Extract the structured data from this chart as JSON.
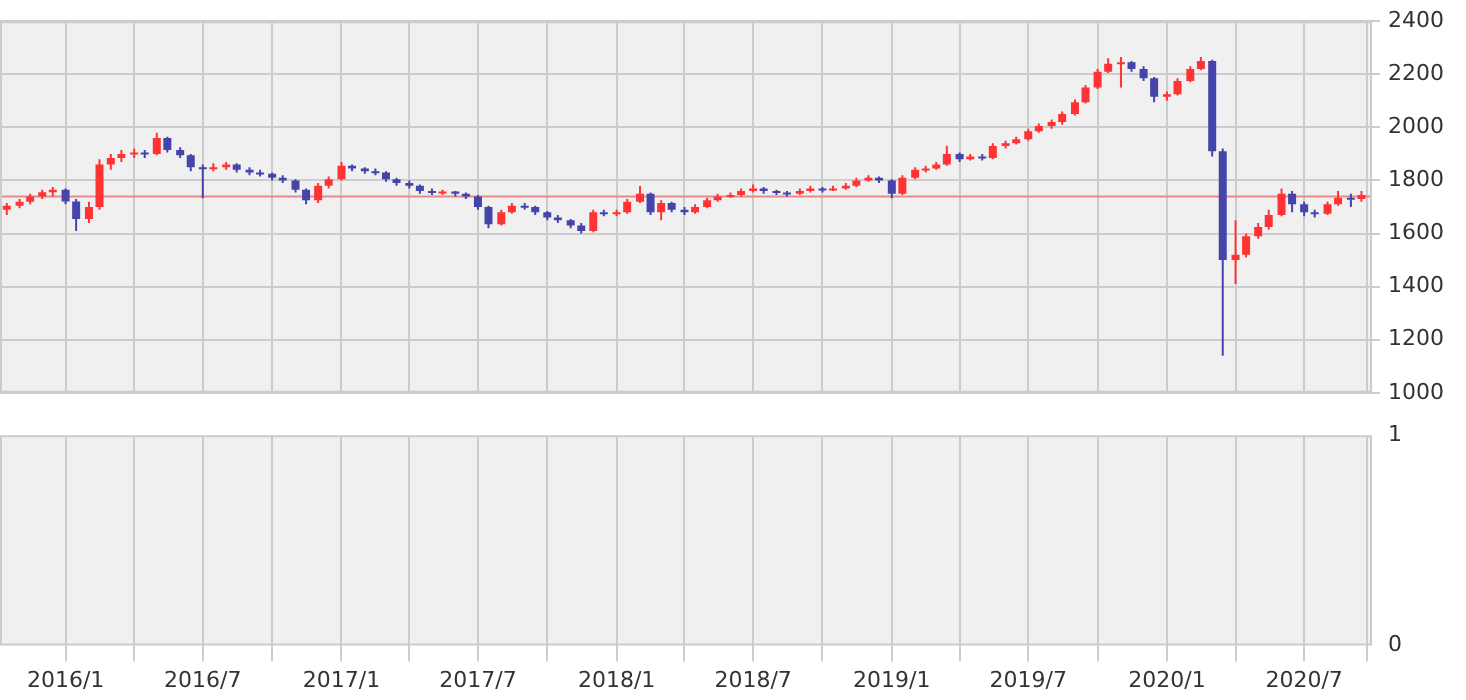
{
  "chart_data": [
    {
      "type": "candlestick",
      "x": [
        "2015-10-15",
        "2015-11-01",
        "2015-11-15",
        "2015-12-01",
        "2015-12-15",
        "2016-01-01",
        "2016-01-15",
        "2016-02-01",
        "2016-02-15",
        "2016-03-01",
        "2016-03-15",
        "2016-04-01",
        "2016-04-15",
        "2016-05-01",
        "2016-05-15",
        "2016-06-01",
        "2016-06-15",
        "2016-07-01",
        "2016-07-15",
        "2016-08-01",
        "2016-08-15",
        "2016-09-01",
        "2016-09-15",
        "2016-10-01",
        "2016-10-15",
        "2016-11-01",
        "2016-11-15",
        "2016-12-01",
        "2016-12-15",
        "2017-01-01",
        "2017-01-15",
        "2017-02-01",
        "2017-02-15",
        "2017-03-01",
        "2017-03-15",
        "2017-04-01",
        "2017-04-15",
        "2017-05-01",
        "2017-05-15",
        "2017-06-01",
        "2017-06-15",
        "2017-07-01",
        "2017-07-15",
        "2017-08-01",
        "2017-08-15",
        "2017-09-01",
        "2017-09-15",
        "2017-10-01",
        "2017-10-15",
        "2017-11-01",
        "2017-11-15",
        "2017-12-01",
        "2017-12-15",
        "2018-01-01",
        "2018-01-15",
        "2018-02-01",
        "2018-02-15",
        "2018-03-01",
        "2018-03-15",
        "2018-04-01",
        "2018-04-15",
        "2018-05-01",
        "2018-05-15",
        "2018-06-01",
        "2018-06-15",
        "2018-07-01",
        "2018-07-15",
        "2018-08-01",
        "2018-08-15",
        "2018-09-01",
        "2018-09-15",
        "2018-10-01",
        "2018-10-15",
        "2018-11-01",
        "2018-11-15",
        "2018-12-01",
        "2018-12-15",
        "2019-01-01",
        "2019-01-15",
        "2019-02-01",
        "2019-02-15",
        "2019-03-01",
        "2019-03-15",
        "2019-04-01",
        "2019-04-15",
        "2019-05-01",
        "2019-05-15",
        "2019-06-01",
        "2019-06-15",
        "2019-07-01",
        "2019-07-15",
        "2019-08-01",
        "2019-08-15",
        "2019-09-01",
        "2019-09-15",
        "2019-10-01",
        "2019-10-15",
        "2019-11-01",
        "2019-11-15",
        "2019-12-01",
        "2019-12-15",
        "2020-01-01",
        "2020-01-15",
        "2020-02-01",
        "2020-02-15",
        "2020-03-01",
        "2020-03-15",
        "2020-04-01",
        "2020-04-15",
        "2020-05-01",
        "2020-05-15",
        "2020-06-01",
        "2020-06-15",
        "2020-07-01",
        "2020-07-15",
        "2020-08-01",
        "2020-08-15",
        "2020-09-01",
        "2020-09-15"
      ],
      "ohlc": [
        [
          1690,
          1715,
          1670,
          1705
        ],
        [
          1705,
          1730,
          1695,
          1720
        ],
        [
          1720,
          1750,
          1710,
          1740
        ],
        [
          1740,
          1765,
          1730,
          1756
        ],
        [
          1756,
          1775,
          1740,
          1765
        ],
        [
          1765,
          1770,
          1710,
          1721
        ],
        [
          1721,
          1730,
          1610,
          1655
        ],
        [
          1655,
          1720,
          1640,
          1700
        ],
        [
          1700,
          1880,
          1690,
          1860
        ],
        [
          1860,
          1900,
          1840,
          1885
        ],
        [
          1885,
          1915,
          1870,
          1900
        ],
        [
          1900,
          1920,
          1885,
          1905
        ],
        [
          1905,
          1915,
          1885,
          1900
        ],
        [
          1900,
          1980,
          1895,
          1960
        ],
        [
          1960,
          1965,
          1905,
          1915
        ],
        [
          1915,
          1925,
          1885,
          1895
        ],
        [
          1895,
          1900,
          1835,
          1850
        ],
        [
          1850,
          1860,
          1733,
          1845
        ],
        [
          1845,
          1865,
          1835,
          1850
        ],
        [
          1850,
          1870,
          1840,
          1860
        ],
        [
          1860,
          1865,
          1830,
          1840
        ],
        [
          1840,
          1850,
          1820,
          1830
        ],
        [
          1830,
          1840,
          1815,
          1825
        ],
        [
          1825,
          1830,
          1800,
          1810
        ],
        [
          1810,
          1820,
          1790,
          1800
        ],
        [
          1800,
          1805,
          1755,
          1765
        ],
        [
          1765,
          1770,
          1710,
          1725
        ],
        [
          1725,
          1790,
          1715,
          1780
        ],
        [
          1780,
          1815,
          1770,
          1805
        ],
        [
          1805,
          1870,
          1800,
          1855
        ],
        [
          1855,
          1860,
          1835,
          1845
        ],
        [
          1845,
          1850,
          1825,
          1835
        ],
        [
          1835,
          1845,
          1820,
          1830
        ],
        [
          1830,
          1835,
          1795,
          1805
        ],
        [
          1805,
          1810,
          1780,
          1790
        ],
        [
          1790,
          1800,
          1770,
          1780
        ],
        [
          1780,
          1785,
          1750,
          1760
        ],
        [
          1760,
          1770,
          1745,
          1755
        ],
        [
          1755,
          1765,
          1745,
          1758
        ],
        [
          1758,
          1760,
          1740,
          1750
        ],
        [
          1750,
          1755,
          1730,
          1740
        ],
        [
          1740,
          1745,
          1690,
          1700
        ],
        [
          1700,
          1705,
          1620,
          1635
        ],
        [
          1635,
          1690,
          1630,
          1680
        ],
        [
          1680,
          1715,
          1675,
          1705
        ],
        [
          1705,
          1715,
          1690,
          1700
        ],
        [
          1700,
          1705,
          1670,
          1680
        ],
        [
          1680,
          1685,
          1650,
          1660
        ],
        [
          1660,
          1670,
          1640,
          1650
        ],
        [
          1650,
          1655,
          1620,
          1630
        ],
        [
          1630,
          1640,
          1600,
          1610
        ],
        [
          1610,
          1690,
          1605,
          1680
        ],
        [
          1680,
          1690,
          1665,
          1675
        ],
        [
          1675,
          1690,
          1665,
          1680
        ],
        [
          1680,
          1730,
          1675,
          1720
        ],
        [
          1720,
          1779,
          1715,
          1750
        ],
        [
          1750,
          1755,
          1670,
          1680
        ],
        [
          1680,
          1725,
          1650,
          1715
        ],
        [
          1715,
          1720,
          1680,
          1690
        ],
        [
          1690,
          1700,
          1670,
          1680
        ],
        [
          1680,
          1710,
          1675,
          1700
        ],
        [
          1700,
          1735,
          1695,
          1725
        ],
        [
          1725,
          1750,
          1720,
          1740
        ],
        [
          1740,
          1755,
          1735,
          1745
        ],
        [
          1745,
          1770,
          1740,
          1760
        ],
        [
          1760,
          1785,
          1755,
          1770
        ],
        [
          1770,
          1775,
          1750,
          1760
        ],
        [
          1760,
          1765,
          1745,
          1755
        ],
        [
          1755,
          1760,
          1740,
          1750
        ],
        [
          1750,
          1770,
          1745,
          1760
        ],
        [
          1760,
          1780,
          1755,
          1770
        ],
        [
          1770,
          1775,
          1755,
          1765
        ],
        [
          1765,
          1780,
          1760,
          1770
        ],
        [
          1770,
          1790,
          1765,
          1780
        ],
        [
          1780,
          1810,
          1775,
          1800
        ],
        [
          1800,
          1820,
          1795,
          1810
        ],
        [
          1810,
          1815,
          1790,
          1800
        ],
        [
          1800,
          1805,
          1733,
          1750
        ],
        [
          1750,
          1820,
          1745,
          1810
        ],
        [
          1810,
          1850,
          1805,
          1840
        ],
        [
          1840,
          1855,
          1830,
          1845
        ],
        [
          1845,
          1870,
          1840,
          1860
        ],
        [
          1860,
          1931,
          1855,
          1900
        ],
        [
          1900,
          1905,
          1870,
          1880
        ],
        [
          1880,
          1900,
          1875,
          1890
        ],
        [
          1890,
          1900,
          1875,
          1885
        ],
        [
          1885,
          1940,
          1880,
          1930
        ],
        [
          1930,
          1950,
          1920,
          1940
        ],
        [
          1940,
          1965,
          1935,
          1955
        ],
        [
          1955,
          1995,
          1950,
          1985
        ],
        [
          1985,
          2015,
          1980,
          2005
        ],
        [
          2005,
          2030,
          1995,
          2020
        ],
        [
          2020,
          2060,
          2010,
          2050
        ],
        [
          2050,
          2105,
          2045,
          2095
        ],
        [
          2095,
          2160,
          2090,
          2150
        ],
        [
          2150,
          2220,
          2145,
          2210
        ],
        [
          2210,
          2260,
          2205,
          2240
        ],
        [
          2240,
          2265,
          2150,
          2245
        ],
        [
          2245,
          2250,
          2210,
          2220
        ],
        [
          2220,
          2230,
          2175,
          2185
        ],
        [
          2185,
          2190,
          2095,
          2115
        ],
        [
          2115,
          2135,
          2100,
          2125
        ],
        [
          2125,
          2185,
          2120,
          2175
        ],
        [
          2175,
          2230,
          2170,
          2220
        ],
        [
          2220,
          2265,
          2215,
          2250
        ],
        [
          2250,
          2255,
          1890,
          1910
        ],
        [
          1910,
          1920,
          1140,
          1500
        ],
        [
          1500,
          1650,
          1410,
          1520
        ],
        [
          1520,
          1600,
          1510,
          1590
        ],
        [
          1590,
          1640,
          1580,
          1625
        ],
        [
          1625,
          1690,
          1615,
          1670
        ],
        [
          1670,
          1770,
          1665,
          1750
        ],
        [
          1750,
          1760,
          1680,
          1710
        ],
        [
          1710,
          1720,
          1665,
          1680
        ],
        [
          1680,
          1690,
          1660,
          1675
        ],
        [
          1675,
          1720,
          1670,
          1710
        ],
        [
          1710,
          1760,
          1705,
          1735
        ],
        [
          1735,
          1750,
          1700,
          1730
        ],
        [
          1730,
          1760,
          1720,
          1745
        ]
      ],
      "colors": [
        "#ff3333",
        "#ff3333",
        "#ff3333",
        "#ff3333",
        "#ff3333",
        "#4444aa",
        "#4444aa",
        "#ff3333",
        "#ff3333",
        "#ff3333",
        "#ff3333",
        "#ff3333",
        "#4444aa",
        "#ff3333",
        "#4444aa",
        "#4444aa",
        "#4444aa",
        "#4444aa",
        "#ff3333",
        "#ff3333",
        "#4444aa",
        "#4444aa",
        "#4444aa",
        "#4444aa",
        "#4444aa",
        "#4444aa",
        "#4444aa",
        "#ff3333",
        "#ff3333",
        "#ff3333",
        "#4444aa",
        "#4444aa",
        "#4444aa",
        "#4444aa",
        "#4444aa",
        "#4444aa",
        "#4444aa",
        "#4444aa",
        "#ff3333",
        "#4444aa",
        "#4444aa",
        "#4444aa",
        "#4444aa",
        "#ff3333",
        "#ff3333",
        "#4444aa",
        "#4444aa",
        "#4444aa",
        "#4444aa",
        "#4444aa",
        "#4444aa",
        "#ff3333",
        "#4444aa",
        "#ff3333",
        "#ff3333",
        "#ff3333",
        "#4444aa",
        "#ff3333",
        "#4444aa",
        "#4444aa",
        "#ff3333",
        "#ff3333",
        "#ff3333",
        "#ff3333",
        "#ff3333",
        "#ff3333",
        "#4444aa",
        "#4444aa",
        "#4444aa",
        "#ff3333",
        "#ff3333",
        "#4444aa",
        "#ff3333",
        "#ff3333",
        "#ff3333",
        "#ff3333",
        "#4444aa",
        "#4444aa",
        "#ff3333",
        "#ff3333",
        "#ff3333",
        "#ff3333",
        "#ff3333",
        "#4444aa",
        "#ff3333",
        "#4444aa",
        "#ff3333",
        "#ff3333",
        "#ff3333",
        "#ff3333",
        "#ff3333",
        "#ff3333",
        "#ff3333",
        "#ff3333",
        "#ff3333",
        "#ff3333",
        "#ff3333",
        "#ff3333",
        "#4444aa",
        "#4444aa",
        "#4444aa",
        "#ff3333",
        "#ff3333",
        "#ff3333",
        "#ff3333",
        "#4444aa",
        "#4444aa",
        "#ff3333",
        "#ff3333",
        "#ff3333",
        "#ff3333",
        "#ff3333",
        "#4444aa",
        "#4444aa",
        "#4444aa",
        "#ff3333",
        "#ff3333",
        "#4444aa",
        "#ff3333"
      ],
      "xlim": [
        "2015-10-06",
        "2020-09-29"
      ],
      "xticks": [
        {
          "value": "2016-01-01",
          "label": null
        },
        {
          "value": "2016-04-01",
          "label": null
        },
        {
          "value": "2016-07-01",
          "label": null
        },
        {
          "value": "2016-10-01",
          "label": null
        },
        {
          "value": "2017-01-01",
          "label": null
        },
        {
          "value": "2017-04-01",
          "label": null
        },
        {
          "value": "2017-07-01",
          "label": null
        },
        {
          "value": "2017-10-01",
          "label": null
        },
        {
          "value": "2018-01-01",
          "label": null
        },
        {
          "value": "2018-04-01",
          "label": null
        },
        {
          "value": "2018-07-01",
          "label": null
        },
        {
          "value": "2018-10-01",
          "label": null
        },
        {
          "value": "2019-01-01",
          "label": null
        },
        {
          "value": "2019-04-01",
          "label": null
        },
        {
          "value": "2019-07-01",
          "label": null
        },
        {
          "value": "2019-10-01",
          "label": null
        },
        {
          "value": "2020-01-01",
          "label": null
        },
        {
          "value": "2020-04-01",
          "label": null
        },
        {
          "value": "2020-07-01",
          "label": null
        },
        {
          "value": "2020-09-22",
          "label": null
        }
      ],
      "ylim": [
        1000,
        2400
      ],
      "yticks": [
        1000,
        1200,
        1400,
        1600,
        1800,
        2000,
        2200,
        2400
      ],
      "ref_lines": [
        {
          "axis": "y",
          "value": 1740,
          "color": "#e88a8a"
        }
      ],
      "grid": true,
      "tick_labels": "y"
    },
    {
      "type": "line",
      "xlim": [
        "2015-10-06",
        "2020-09-29"
      ],
      "xticks": [
        {
          "value": "2016-01-01",
          "label": "2016/1"
        },
        {
          "value": "2016-04-01",
          "label": null
        },
        {
          "value": "2016-07-01",
          "label": "2016/7"
        },
        {
          "value": "2016-10-01",
          "label": null
        },
        {
          "value": "2017-01-01",
          "label": "2017/1"
        },
        {
          "value": "2017-04-01",
          "label": null
        },
        {
          "value": "2017-07-01",
          "label": "2017/7"
        },
        {
          "value": "2017-10-01",
          "label": null
        },
        {
          "value": "2018-01-01",
          "label": "2018/1"
        },
        {
          "value": "2018-04-01",
          "label": null
        },
        {
          "value": "2018-07-01",
          "label": "2018/7"
        },
        {
          "value": "2018-10-01",
          "label": null
        },
        {
          "value": "2019-01-01",
          "label": "2019/1"
        },
        {
          "value": "2019-04-01",
          "label": null
        },
        {
          "value": "2019-07-01",
          "label": "2019/7"
        },
        {
          "value": "2019-10-01",
          "label": null
        },
        {
          "value": "2020-01-01",
          "label": "2020/1"
        },
        {
          "value": "2020-04-01",
          "label": null
        },
        {
          "value": "2020-07-01",
          "label": "2020/7"
        },
        {
          "value": "2020-09-22",
          "label": null
        }
      ],
      "ylim": [
        0,
        1
      ],
      "yticks": [
        0,
        1
      ],
      "grid": "x"
    }
  ]
}
